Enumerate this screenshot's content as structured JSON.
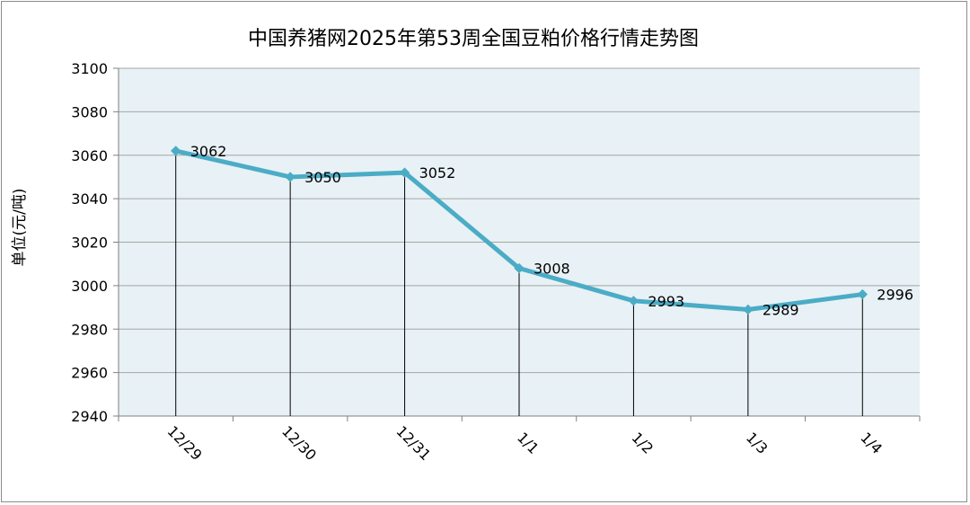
{
  "chart_data": {
    "type": "line",
    "title": "中国养猪网2025年第53周全国豆粕价格行情走势图",
    "xlabel": "",
    "ylabel": "单位(元/吨)",
    "categories": [
      "12/29",
      "12/30",
      "12/31",
      "1/1",
      "1/2",
      "1/3",
      "1/4"
    ],
    "series": [
      {
        "values": [
          3062,
          3050,
          3052,
          3008,
          2993,
          2989,
          2996
        ]
      }
    ],
    "ylim": [
      2940,
      3100
    ],
    "yticks": [
      2940,
      2960,
      2980,
      3000,
      3020,
      3040,
      3060,
      3080,
      3100
    ],
    "grid": true,
    "data_labels": true,
    "legend": "none",
    "colors": {
      "line": "#4bacc6",
      "plot_background": "#e8f1f5",
      "grid": "#a6a6a6",
      "drop_lines": "#000000"
    }
  }
}
